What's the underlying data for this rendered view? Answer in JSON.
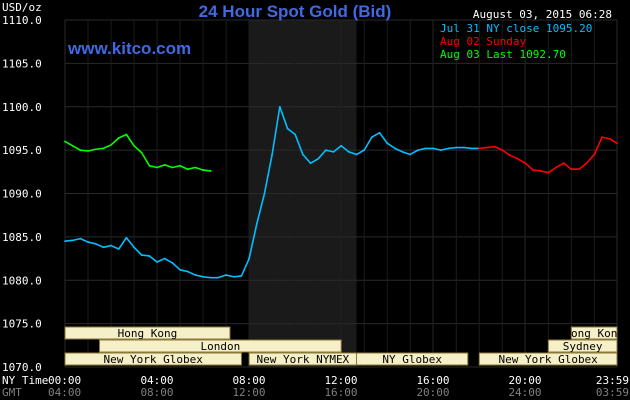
{
  "chart_data": {
    "type": "line",
    "title": "24 Hour Spot Gold (Bid)",
    "site": "www.kitco.com",
    "unit_label": "USD/oz",
    "date_label": "August 03, 2015 06:28",
    "ylim": [
      1070,
      1110
    ],
    "xlim": [
      0,
      1439
    ],
    "y_ticks": [
      "1110.0",
      "1105.0",
      "1100.0",
      "1095.0",
      "1090.0",
      "1085.0",
      "1080.0",
      "1075.0",
      "1070.0"
    ],
    "x_ticks_ny": [
      "00:00",
      "04:00",
      "08:00",
      "12:00",
      "16:00",
      "20:00",
      "23:59"
    ],
    "x_ticks_gmt": [
      "04:00",
      "08:00",
      "12:00",
      "16:00",
      "20:00",
      "24:00",
      "03:59"
    ],
    "x_axis_label_ny": "NY Time",
    "x_axis_label_gmt": "GMT",
    "shaded_region": [
      480,
      760
    ],
    "grid": true,
    "legend_position": "top-right",
    "colors": {
      "jul31": "#00bfff",
      "aug02": "#ff0000",
      "aug03": "#00ff00",
      "grid": "#2a2a2a",
      "session_fill": "#f5f0c8"
    },
    "series": [
      {
        "name": "Jul 31 NY close 1095.20",
        "color": "#00bfff",
        "x": [
          0,
          20,
          40,
          60,
          80,
          100,
          120,
          140,
          160,
          180,
          200,
          220,
          240,
          260,
          280,
          300,
          320,
          340,
          360,
          380,
          400,
          420,
          440,
          460,
          480,
          500,
          520,
          540,
          560,
          580,
          600,
          620,
          640,
          660,
          680,
          700,
          720,
          740,
          760,
          780,
          800,
          820,
          840,
          860,
          880,
          900,
          920,
          940,
          960,
          980,
          1000,
          1020,
          1040,
          1060,
          1080
        ],
        "y": [
          1084.5,
          1084.6,
          1084.8,
          1084.4,
          1084.2,
          1083.8,
          1084.0,
          1083.6,
          1084.9,
          1083.8,
          1082.9,
          1082.8,
          1082.1,
          1082.5,
          1082.0,
          1081.2,
          1081.0,
          1080.6,
          1080.4,
          1080.3,
          1080.3,
          1080.6,
          1080.4,
          1080.5,
          1082.5,
          1086.5,
          1090.0,
          1094.5,
          1100.0,
          1097.5,
          1096.8,
          1094.5,
          1093.5,
          1094.0,
          1095.0,
          1094.8,
          1095.5,
          1094.8,
          1094.5,
          1095.0,
          1096.5,
          1097.0,
          1095.8,
          1095.2,
          1094.8,
          1094.5,
          1095.0,
          1095.2,
          1095.2,
          1095.0,
          1095.2,
          1095.3,
          1095.3,
          1095.2,
          1095.2
        ]
      },
      {
        "name": "Aug 02 Sunday",
        "color": "#ff0000",
        "x": [
          1080,
          1100,
          1120,
          1140,
          1160,
          1180,
          1200,
          1220,
          1240,
          1260,
          1280,
          1300,
          1320,
          1340,
          1360,
          1380,
          1400,
          1420,
          1439
        ],
        "y": [
          1095.2,
          1095.3,
          1095.4,
          1095.0,
          1094.4,
          1094.0,
          1093.5,
          1092.7,
          1092.6,
          1092.4,
          1093.0,
          1093.5,
          1092.8,
          1092.8,
          1093.5,
          1094.5,
          1096.5,
          1096.3,
          1095.8
        ]
      },
      {
        "name": "Aug 03 Last 1092.70",
        "color": "#00ff00",
        "x": [
          0,
          20,
          40,
          60,
          80,
          100,
          120,
          140,
          160,
          180,
          200,
          220,
          240,
          260,
          280,
          300,
          320,
          340,
          360,
          380
        ],
        "y": [
          1096.0,
          1095.5,
          1095.0,
          1094.9,
          1095.1,
          1095.2,
          1095.6,
          1096.4,
          1096.8,
          1095.5,
          1094.7,
          1093.2,
          1093.0,
          1093.3,
          1093.0,
          1093.2,
          1092.8,
          1093.0,
          1092.7,
          1092.6
        ]
      }
    ],
    "sessions": [
      {
        "name": "Hong Kong",
        "row": 0,
        "start": 0,
        "end": 430
      },
      {
        "name": "Hong Kong",
        "row": 0,
        "start": 1320,
        "end": 1439
      },
      {
        "name": "London",
        "row": 1,
        "start": 90,
        "end": 720
      },
      {
        "name": "Sydney",
        "row": 1,
        "start": 1260,
        "end": 1439
      },
      {
        "name": "New York Globex",
        "row": 2,
        "start": 0,
        "end": 460
      },
      {
        "name": "New York NYMEX",
        "row": 2,
        "start": 480,
        "end": 760
      },
      {
        "name": "NY Globex",
        "row": 2,
        "start": 760,
        "end": 1050
      },
      {
        "name": "New York Globex",
        "row": 2,
        "start": 1080,
        "end": 1439
      }
    ]
  }
}
